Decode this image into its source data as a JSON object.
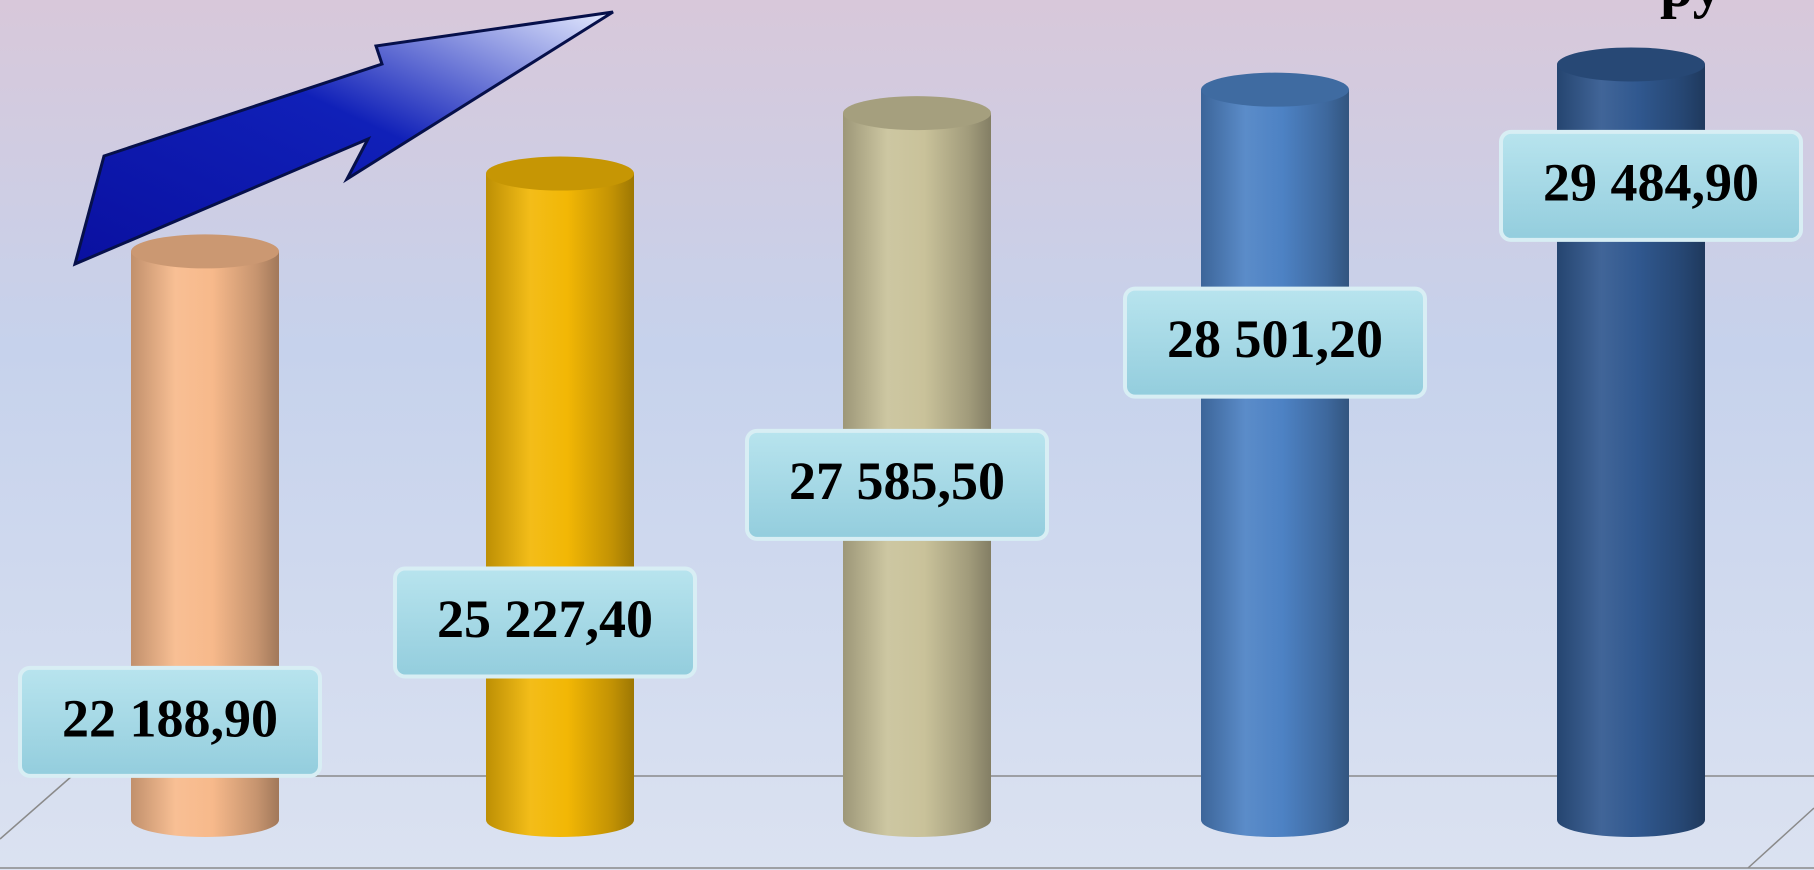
{
  "chart_data": {
    "type": "bar3d",
    "title": "ру",
    "categories": [
      null,
      null,
      null,
      null,
      null
    ],
    "values": [
      22188.9,
      25227.4,
      27585.5,
      28501.2,
      29484.9
    ],
    "value_labels": [
      "22 188,90",
      "25 227,40",
      "27 585,50",
      "28 501,20",
      "29 484,90"
    ],
    "colors": [
      "#f7b98b",
      "#f2b705",
      "#c9c29a",
      "#4d82c4",
      "#30588f"
    ],
    "ylim": [
      0,
      32000
    ]
  }
}
